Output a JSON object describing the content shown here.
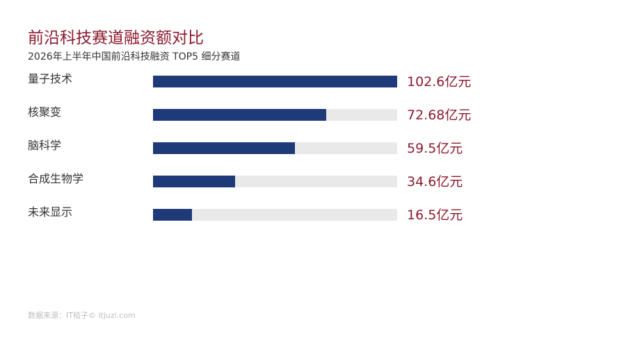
{
  "colors": {
    "title": "#8b1a2e",
    "bar": "#1f3a78",
    "track": "#e9e9e9",
    "value_text": "#8b1a2e"
  },
  "source": "数据来源：IT桔子© itjuzi.com",
  "chart_data": {
    "type": "bar",
    "orientation": "horizontal",
    "title": "前沿科技赛道融资额对比",
    "subtitle": "2026年上半年中国前沿科技融资 TOP5 细分赛道",
    "unit": "亿元",
    "categories": [
      "量子技术",
      "核聚变",
      "脑科学",
      "合成生物学",
      "未来显示"
    ],
    "values": [
      102.6,
      72.68,
      59.5,
      34.6,
      16.5
    ],
    "value_labels": [
      "102.6亿元",
      "72.68亿元",
      "59.5亿元",
      "34.6亿元",
      "16.5亿元"
    ],
    "xlim": [
      0,
      102.6
    ],
    "grid": false,
    "legend": "none"
  }
}
